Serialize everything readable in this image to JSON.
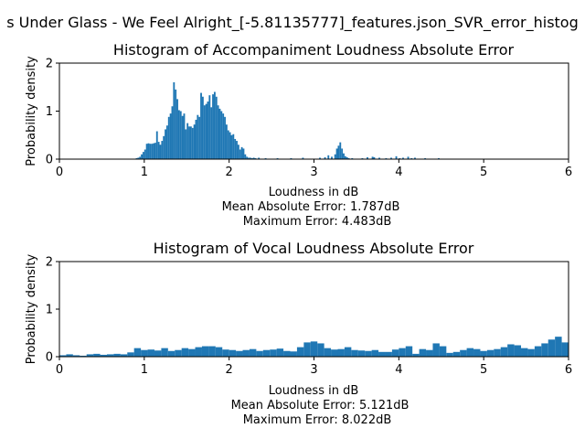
{
  "figure": {
    "suptitle": "s Under Glass - We Feel Alright_[-5.81135777]_features.json_SVR_error_histog",
    "bar_color": "#1f77b4"
  },
  "chart_data": [
    {
      "type": "bar",
      "title": "Histogram of Accompaniment Loudness Absolute Error",
      "xlabel": "Loudness in dB",
      "ylabel": "Probability density",
      "xlim": [
        0,
        6
      ],
      "ylim": [
        0,
        2
      ],
      "xticks": [
        "0",
        "1",
        "2",
        "3",
        "4",
        "5",
        "6"
      ],
      "yticks": [
        "0",
        "1",
        "2"
      ],
      "grid": false,
      "annotations": [
        "Mean Absolute Error: 1.787dB",
        "Maximum Error: 4.483dB"
      ],
      "bin_width": 0.02,
      "bins_x": [
        0.9,
        0.92,
        0.94,
        0.96,
        0.98,
        1.0,
        1.02,
        1.04,
        1.06,
        1.08,
        1.1,
        1.12,
        1.14,
        1.16,
        1.18,
        1.2,
        1.22,
        1.24,
        1.26,
        1.28,
        1.3,
        1.32,
        1.34,
        1.36,
        1.38,
        1.4,
        1.42,
        1.44,
        1.46,
        1.48,
        1.5,
        1.52,
        1.54,
        1.56,
        1.58,
        1.6,
        1.62,
        1.64,
        1.66,
        1.68,
        1.7,
        1.72,
        1.74,
        1.76,
        1.78,
        1.8,
        1.82,
        1.84,
        1.86,
        1.88,
        1.9,
        1.92,
        1.94,
        1.96,
        1.98,
        2.0,
        2.02,
        2.04,
        2.06,
        2.08,
        2.1,
        2.12,
        2.14,
        2.16,
        2.18,
        2.2,
        2.22,
        2.24,
        2.26,
        2.28,
        2.3,
        2.34,
        2.42,
        2.56,
        2.72,
        2.86,
        3.06,
        3.12,
        3.16,
        3.2,
        3.24,
        3.26,
        3.28,
        3.3,
        3.32,
        3.34,
        3.36,
        3.38,
        3.4,
        3.44,
        3.56,
        3.62,
        3.68,
        3.7,
        3.76,
        3.84,
        3.9,
        3.96,
        4.0,
        4.04,
        4.1,
        4.14,
        4.18,
        4.3,
        4.46
      ],
      "density": [
        0.02,
        0.03,
        0.05,
        0.1,
        0.15,
        0.2,
        0.32,
        0.33,
        0.32,
        0.32,
        0.33,
        0.34,
        0.58,
        0.36,
        0.3,
        0.38,
        0.48,
        0.62,
        0.7,
        0.88,
        0.95,
        1.1,
        1.6,
        1.45,
        1.25,
        1.02,
        1.0,
        0.9,
        0.95,
        0.62,
        0.75,
        0.68,
        0.68,
        0.65,
        0.72,
        0.82,
        0.92,
        0.88,
        1.38,
        1.3,
        1.12,
        1.15,
        1.2,
        1.33,
        1.08,
        1.35,
        1.4,
        1.3,
        1.12,
        1.05,
        1.0,
        0.95,
        0.88,
        0.72,
        0.6,
        0.56,
        0.5,
        0.52,
        0.42,
        0.38,
        0.3,
        0.2,
        0.25,
        0.22,
        0.1,
        0.05,
        0.03,
        0.03,
        0.02,
        0.03,
        0.02,
        0.03,
        0.02,
        0.02,
        0.02,
        0.03,
        0.03,
        0.04,
        0.08,
        0.05,
        0.1,
        0.22,
        0.28,
        0.35,
        0.22,
        0.12,
        0.06,
        0.04,
        0.02,
        0.02,
        0.02,
        0.04,
        0.05,
        0.04,
        0.03,
        0.02,
        0.03,
        0.06,
        0.02,
        0.03,
        0.05,
        0.02,
        0.03,
        0.02,
        0.02
      ]
    },
    {
      "type": "bar",
      "title": "Histogram of Vocal Loudness Absolute Error",
      "xlabel": "Loudness in dB",
      "ylabel": "Probability density",
      "xlim": [
        0,
        6
      ],
      "ylim": [
        0,
        2
      ],
      "xticks": [
        "0",
        "1",
        "2",
        "3",
        "4",
        "5",
        "6"
      ],
      "yticks": [
        "0",
        "1",
        "2"
      ],
      "grid": false,
      "annotations": [
        "Mean Absolute Error: 5.121dB",
        "Maximum Error: 8.022dB"
      ],
      "bin_width": 0.08,
      "bins_x": [
        0.0,
        0.08,
        0.16,
        0.24,
        0.32,
        0.4,
        0.48,
        0.56,
        0.64,
        0.72,
        0.8,
        0.88,
        0.96,
        1.04,
        1.12,
        1.2,
        1.28,
        1.36,
        1.44,
        1.52,
        1.6,
        1.68,
        1.76,
        1.84,
        1.92,
        2.0,
        2.08,
        2.16,
        2.24,
        2.32,
        2.4,
        2.48,
        2.56,
        2.64,
        2.72,
        2.8,
        2.88,
        2.96,
        3.04,
        3.12,
        3.2,
        3.28,
        3.36,
        3.44,
        3.52,
        3.6,
        3.68,
        3.76,
        3.84,
        3.92,
        4.0,
        4.08,
        4.16,
        4.24,
        4.32,
        4.4,
        4.48,
        4.56,
        4.64,
        4.72,
        4.8,
        4.88,
        4.96,
        5.04,
        5.12,
        5.2,
        5.28,
        5.36,
        5.44,
        5.52,
        5.6,
        5.68,
        5.76,
        5.84,
        5.92
      ],
      "density": [
        0.03,
        0.05,
        0.03,
        0.02,
        0.05,
        0.06,
        0.04,
        0.05,
        0.06,
        0.05,
        0.09,
        0.18,
        0.14,
        0.15,
        0.13,
        0.18,
        0.12,
        0.14,
        0.18,
        0.16,
        0.2,
        0.22,
        0.22,
        0.2,
        0.15,
        0.14,
        0.12,
        0.14,
        0.16,
        0.12,
        0.14,
        0.15,
        0.17,
        0.12,
        0.11,
        0.2,
        0.3,
        0.32,
        0.28,
        0.18,
        0.15,
        0.16,
        0.2,
        0.14,
        0.13,
        0.12,
        0.14,
        0.1,
        0.1,
        0.15,
        0.18,
        0.22,
        0.06,
        0.16,
        0.14,
        0.28,
        0.22,
        0.08,
        0.1,
        0.14,
        0.18,
        0.16,
        0.12,
        0.14,
        0.16,
        0.2,
        0.26,
        0.24,
        0.18,
        0.16,
        0.22,
        0.28,
        0.36,
        0.42,
        0.3
      ]
    }
  ]
}
